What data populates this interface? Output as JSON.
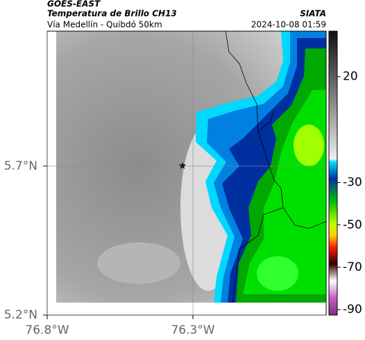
{
  "header": {
    "title": "GOES-EAST",
    "subtitle": "Temperatura de Brillo CH13",
    "location": "Vía Medellín - Quibdó 50km",
    "source": "SIATA",
    "datetime": "2024-10-08 01:59"
  },
  "map": {
    "lat_lim": [
      5.2,
      6.153
    ],
    "lon_lim": [
      -76.8,
      -75.843
    ],
    "lat_ticks": [
      {
        "value": 5.7,
        "label": "5.7°N"
      },
      {
        "value": 5.2,
        "label": "5.2°N"
      }
    ],
    "lon_ticks": [
      {
        "value": -76.8,
        "label": "76.8°W"
      },
      {
        "value": -76.3,
        "label": "76.3°W"
      }
    ]
  },
  "colorbar": {
    "lim": [
      -92.6,
      41.5
    ],
    "ticks": [
      20,
      -30,
      -50,
      -70,
      -90
    ]
  }
}
